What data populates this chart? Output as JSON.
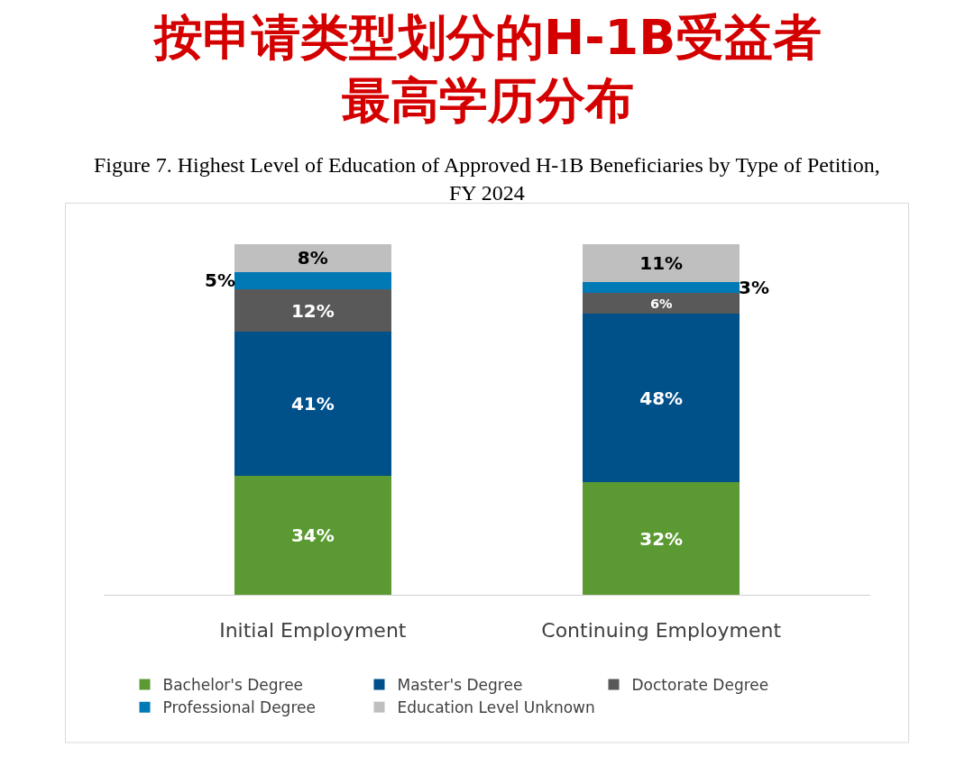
{
  "chart_data": {
    "type": "bar",
    "stacked": true,
    "title": "按申请类型划分的H-1B受益者最高学历分布",
    "subtitle": "Figure 7. Highest Level of Education of Approved H-1B Beneficiaries by Type of Petition,\nFY 2024",
    "categories": [
      "Initial Employment",
      "Continuing Employment"
    ],
    "series": [
      {
        "name": "Bachelor's Degree",
        "color": "#5b9a32",
        "values": [
          34,
          32
        ],
        "value_labels": [
          "34%",
          "32%"
        ]
      },
      {
        "name": "Master's Degree",
        "color": "#00508a",
        "values": [
          41,
          48
        ],
        "value_labels": [
          "41%",
          "48%"
        ]
      },
      {
        "name": "Doctorate Degree",
        "color": "#595959",
        "values": [
          12,
          6
        ],
        "value_labels": [
          "12%",
          "6%"
        ]
      },
      {
        "name": "Professional Degree",
        "color": "#0079b5",
        "values": [
          5,
          3
        ],
        "value_labels": [
          "5%",
          "3%"
        ]
      },
      {
        "name": "Education Level Unknown",
        "color": "#bfbfbf",
        "values": [
          8,
          11
        ],
        "value_labels": [
          "8%",
          "11%"
        ]
      }
    ],
    "legend": "bottom"
  }
}
